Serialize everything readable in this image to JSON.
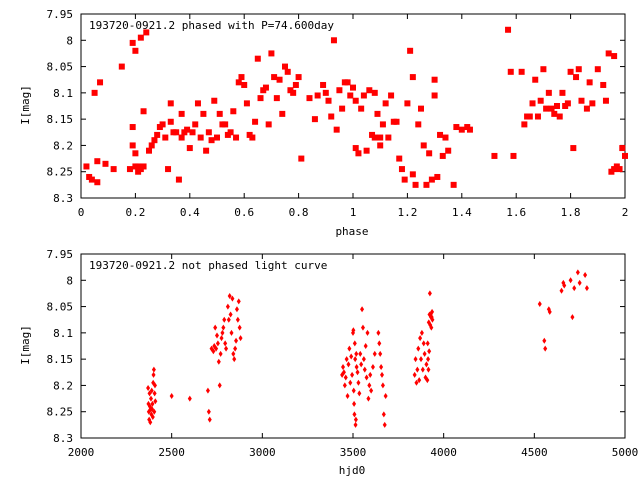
{
  "chart_data": [
    {
      "type": "scatter",
      "title": "193720-0921.2 phased with P=74.600day",
      "xlabel": "phase",
      "ylabel": "I[mag]",
      "xlim": [
        0,
        2
      ],
      "ylim": [
        7.95,
        8.3
      ],
      "y_inverted": true,
      "x_ticks": [
        "0",
        "0.2",
        "0.4",
        "0.6",
        "0.8",
        "1",
        "1.2",
        "1.4",
        "1.6",
        "1.8",
        "2"
      ],
      "y_ticks": [
        "7.95",
        "8",
        "8.05",
        "8.1",
        "8.15",
        "8.2",
        "8.25",
        "8.3"
      ],
      "color": "#ff0000",
      "marker": "filled-square",
      "points": [
        [
          0.02,
          8.24
        ],
        [
          0.03,
          8.26
        ],
        [
          0.04,
          8.265
        ],
        [
          0.05,
          8.1
        ],
        [
          0.06,
          8.27
        ],
        [
          0.06,
          8.23
        ],
        [
          0.07,
          8.08
        ],
        [
          0.09,
          8.235
        ],
        [
          0.12,
          8.245
        ],
        [
          0.15,
          8.05
        ],
        [
          0.18,
          8.245
        ],
        [
          0.19,
          8.2
        ],
        [
          0.19,
          8.165
        ],
        [
          0.19,
          8.005
        ],
        [
          0.2,
          8.24
        ],
        [
          0.2,
          8.215
        ],
        [
          0.2,
          8.02
        ],
        [
          0.21,
          8.24
        ],
        [
          0.21,
          8.25
        ],
        [
          0.22,
          8.245
        ],
        [
          0.22,
          7.995
        ],
        [
          0.23,
          8.24
        ],
        [
          0.23,
          8.135
        ],
        [
          0.24,
          7.985
        ],
        [
          0.25,
          8.21
        ],
        [
          0.26,
          8.2
        ],
        [
          0.27,
          8.19
        ],
        [
          0.28,
          8.18
        ],
        [
          0.29,
          8.165
        ],
        [
          0.3,
          8.16
        ],
        [
          0.31,
          8.185
        ],
        [
          0.32,
          8.245
        ],
        [
          0.33,
          8.12
        ],
        [
          0.33,
          8.155
        ],
        [
          0.34,
          8.175
        ],
        [
          0.35,
          8.175
        ],
        [
          0.36,
          8.265
        ],
        [
          0.37,
          8.185
        ],
        [
          0.37,
          8.14
        ],
        [
          0.38,
          8.175
        ],
        [
          0.39,
          8.17
        ],
        [
          0.4,
          8.205
        ],
        [
          0.41,
          8.175
        ],
        [
          0.42,
          8.16
        ],
        [
          0.43,
          8.12
        ],
        [
          0.44,
          8.185
        ],
        [
          0.45,
          8.14
        ],
        [
          0.46,
          8.21
        ],
        [
          0.47,
          8.175
        ],
        [
          0.48,
          8.19
        ],
        [
          0.49,
          8.115
        ],
        [
          0.5,
          8.185
        ],
        [
          0.51,
          8.14
        ],
        [
          0.52,
          8.16
        ],
        [
          0.53,
          8.16
        ],
        [
          0.54,
          8.18
        ],
        [
          0.55,
          8.175
        ],
        [
          0.56,
          8.135
        ],
        [
          0.57,
          8.185
        ],
        [
          0.58,
          8.08
        ],
        [
          0.59,
          8.07
        ],
        [
          0.6,
          8.085
        ],
        [
          0.61,
          8.12
        ],
        [
          0.62,
          8.18
        ],
        [
          0.63,
          8.185
        ],
        [
          0.64,
          8.155
        ],
        [
          0.65,
          8.035
        ],
        [
          0.66,
          8.11
        ],
        [
          0.67,
          8.095
        ],
        [
          0.68,
          8.09
        ],
        [
          0.69,
          8.16
        ],
        [
          0.7,
          8.025
        ],
        [
          0.71,
          8.07
        ],
        [
          0.72,
          8.11
        ],
        [
          0.73,
          8.075
        ],
        [
          0.74,
          8.14
        ],
        [
          0.75,
          8.05
        ],
        [
          0.76,
          8.06
        ],
        [
          0.77,
          8.095
        ],
        [
          0.78,
          8.1
        ],
        [
          0.79,
          8.085
        ],
        [
          0.8,
          8.07
        ],
        [
          0.81,
          8.225
        ],
        [
          0.84,
          8.11
        ],
        [
          0.86,
          8.15
        ],
        [
          0.87,
          8.105
        ],
        [
          0.89,
          8.085
        ],
        [
          0.9,
          8.1
        ],
        [
          0.91,
          8.115
        ],
        [
          0.92,
          8.145
        ],
        [
          0.93,
          8.0
        ],
        [
          0.94,
          8.17
        ],
        [
          0.95,
          8.095
        ],
        [
          0.96,
          8.13
        ],
        [
          0.97,
          8.08
        ],
        [
          0.98,
          8.08
        ],
        [
          0.99,
          8.105
        ],
        [
          1.0,
          8.09
        ],
        [
          1.01,
          8.115
        ],
        [
          1.01,
          8.205
        ],
        [
          1.02,
          8.215
        ],
        [
          1.03,
          8.13
        ],
        [
          1.04,
          8.105
        ],
        [
          1.05,
          8.21
        ],
        [
          1.06,
          8.095
        ],
        [
          1.07,
          8.18
        ],
        [
          1.08,
          8.185
        ],
        [
          1.08,
          8.1
        ],
        [
          1.09,
          8.14
        ],
        [
          1.1,
          8.2
        ],
        [
          1.1,
          8.185
        ],
        [
          1.11,
          8.16
        ],
        [
          1.12,
          8.12
        ],
        [
          1.13,
          8.185
        ],
        [
          1.14,
          8.105
        ],
        [
          1.15,
          8.155
        ],
        [
          1.16,
          8.155
        ],
        [
          1.17,
          8.225
        ],
        [
          1.18,
          8.245
        ],
        [
          1.19,
          8.265
        ],
        [
          1.2,
          8.12
        ],
        [
          1.21,
          8.02
        ],
        [
          1.22,
          8.255
        ],
        [
          1.22,
          8.07
        ],
        [
          1.23,
          8.275
        ],
        [
          1.24,
          8.16
        ],
        [
          1.25,
          8.13
        ],
        [
          1.26,
          8.2
        ],
        [
          1.27,
          8.275
        ],
        [
          1.28,
          8.215
        ],
        [
          1.29,
          8.265
        ],
        [
          1.3,
          8.105
        ],
        [
          1.3,
          8.075
        ],
        [
          1.31,
          8.26
        ],
        [
          1.32,
          8.18
        ],
        [
          1.33,
          8.22
        ],
        [
          1.34,
          8.185
        ],
        [
          1.35,
          8.21
        ],
        [
          1.37,
          8.275
        ],
        [
          1.38,
          8.165
        ],
        [
          1.4,
          8.17
        ],
        [
          1.42,
          8.165
        ],
        [
          1.43,
          8.17
        ],
        [
          1.52,
          8.22
        ],
        [
          1.57,
          7.98
        ],
        [
          1.58,
          8.06
        ],
        [
          1.59,
          8.22
        ],
        [
          1.62,
          8.06
        ],
        [
          1.63,
          8.16
        ],
        [
          1.64,
          8.145
        ],
        [
          1.65,
          8.145
        ],
        [
          1.66,
          8.12
        ],
        [
          1.67,
          8.075
        ],
        [
          1.68,
          8.145
        ],
        [
          1.69,
          8.115
        ],
        [
          1.7,
          8.055
        ],
        [
          1.71,
          8.13
        ],
        [
          1.72,
          8.1
        ],
        [
          1.73,
          8.13
        ],
        [
          1.74,
          8.14
        ],
        [
          1.75,
          8.125
        ],
        [
          1.76,
          8.145
        ],
        [
          1.77,
          8.1
        ],
        [
          1.78,
          8.125
        ],
        [
          1.79,
          8.12
        ],
        [
          1.8,
          8.06
        ],
        [
          1.81,
          8.205
        ],
        [
          1.82,
          8.07
        ],
        [
          1.83,
          8.055
        ],
        [
          1.84,
          8.115
        ],
        [
          1.86,
          8.13
        ],
        [
          1.87,
          8.08
        ],
        [
          1.88,
          8.12
        ],
        [
          1.9,
          8.055
        ],
        [
          1.92,
          8.085
        ],
        [
          1.93,
          8.115
        ],
        [
          1.94,
          8.025
        ],
        [
          1.95,
          8.25
        ],
        [
          1.96,
          8.245
        ],
        [
          1.96,
          8.03
        ],
        [
          1.97,
          8.24
        ],
        [
          1.98,
          8.245
        ],
        [
          1.99,
          8.205
        ],
        [
          2.0,
          8.22
        ]
      ]
    },
    {
      "type": "scatter",
      "title": "193720-0921.2 not phased light curve",
      "xlabel": "hjd0",
      "ylabel": "I[mag]",
      "xlim": [
        2000,
        5000
      ],
      "ylim": [
        7.95,
        8.3
      ],
      "y_inverted": true,
      "x_ticks": [
        "2000",
        "2500",
        "3000",
        "3500",
        "4000",
        "4500",
        "5000"
      ],
      "y_ticks": [
        "7.95",
        "8",
        "8.05",
        "8.1",
        "8.15",
        "8.2",
        "8.25",
        "8.3"
      ],
      "color": "#ff0000",
      "marker": "small-diamond",
      "points": [
        [
          2370,
          8.205
        ],
        [
          2372,
          8.235
        ],
        [
          2374,
          8.25
        ],
        [
          2376,
          8.265
        ],
        [
          2378,
          8.215
        ],
        [
          2380,
          8.24
        ],
        [
          2382,
          8.27
        ],
        [
          2384,
          8.245
        ],
        [
          2386,
          8.225
        ],
        [
          2388,
          8.255
        ],
        [
          2390,
          8.21
        ],
        [
          2392,
          8.245
        ],
        [
          2394,
          8.235
        ],
        [
          2396,
          8.26
        ],
        [
          2398,
          8.195
        ],
        [
          2400,
          8.18
        ],
        [
          2402,
          8.17
        ],
        [
          2404,
          8.25
        ],
        [
          2406,
          8.215
        ],
        [
          2408,
          8.2
        ],
        [
          2410,
          8.23
        ],
        [
          2500,
          8.22
        ],
        [
          2600,
          8.225
        ],
        [
          2700,
          8.21
        ],
        [
          2705,
          8.25
        ],
        [
          2710,
          8.265
        ],
        [
          2720,
          8.13
        ],
        [
          2730,
          8.135
        ],
        [
          2735,
          8.125
        ],
        [
          2740,
          8.09
        ],
        [
          2745,
          8.13
        ],
        [
          2750,
          8.105
        ],
        [
          2755,
          8.12
        ],
        [
          2760,
          8.155
        ],
        [
          2765,
          8.2
        ],
        [
          2770,
          8.14
        ],
        [
          2775,
          8.11
        ],
        [
          2780,
          8.1
        ],
        [
          2785,
          8.09
        ],
        [
          2790,
          8.075
        ],
        [
          2795,
          8.12
        ],
        [
          2800,
          8.13
        ],
        [
          2810,
          8.05
        ],
        [
          2815,
          8.075
        ],
        [
          2820,
          8.03
        ],
        [
          2825,
          8.065
        ],
        [
          2830,
          8.1
        ],
        [
          2835,
          8.035
        ],
        [
          2840,
          8.14
        ],
        [
          2845,
          8.15
        ],
        [
          2850,
          8.13
        ],
        [
          2855,
          8.115
        ],
        [
          2860,
          8.055
        ],
        [
          2865,
          8.075
        ],
        [
          2870,
          8.04
        ],
        [
          2875,
          8.09
        ],
        [
          2880,
          8.11
        ],
        [
          3440,
          8.18
        ],
        [
          3445,
          8.165
        ],
        [
          3450,
          8.175
        ],
        [
          3455,
          8.2
        ],
        [
          3460,
          8.185
        ],
        [
          3465,
          8.15
        ],
        [
          3470,
          8.22
        ],
        [
          3475,
          8.16
        ],
        [
          3480,
          8.13
        ],
        [
          3485,
          8.195
        ],
        [
          3490,
          8.145
        ],
        [
          3495,
          8.18
        ],
        [
          3500,
          8.1
        ],
        [
          3502,
          8.095
        ],
        [
          3504,
          8.21
        ],
        [
          3506,
          8.235
        ],
        [
          3508,
          8.255
        ],
        [
          3510,
          8.12
        ],
        [
          3512,
          8.15
        ],
        [
          3514,
          8.275
        ],
        [
          3516,
          8.265
        ],
        [
          3518,
          8.14
        ],
        [
          3520,
          8.165
        ],
        [
          3525,
          8.175
        ],
        [
          3530,
          8.195
        ],
        [
          3535,
          8.215
        ],
        [
          3540,
          8.14
        ],
        [
          3545,
          8.16
        ],
        [
          3550,
          8.055
        ],
        [
          3555,
          8.09
        ],
        [
          3560,
          8.15
        ],
        [
          3565,
          8.17
        ],
        [
          3570,
          8.125
        ],
        [
          3575,
          8.185
        ],
        [
          3580,
          8.1
        ],
        [
          3585,
          8.225
        ],
        [
          3590,
          8.2
        ],
        [
          3595,
          8.18
        ],
        [
          3600,
          8.21
        ],
        [
          3610,
          8.165
        ],
        [
          3620,
          8.14
        ],
        [
          3640,
          8.1
        ],
        [
          3645,
          8.12
        ],
        [
          3650,
          8.14
        ],
        [
          3655,
          8.165
        ],
        [
          3660,
          8.18
        ],
        [
          3665,
          8.2
        ],
        [
          3670,
          8.255
        ],
        [
          3675,
          8.275
        ],
        [
          3680,
          8.22
        ],
        [
          3840,
          8.18
        ],
        [
          3845,
          8.15
        ],
        [
          3850,
          8.195
        ],
        [
          3855,
          8.17
        ],
        [
          3860,
          8.13
        ],
        [
          3865,
          8.19
        ],
        [
          3870,
          8.11
        ],
        [
          3875,
          8.15
        ],
        [
          3880,
          8.1
        ],
        [
          3885,
          8.17
        ],
        [
          3890,
          8.12
        ],
        [
          3895,
          8.14
        ],
        [
          3900,
          8.185
        ],
        [
          3905,
          8.16
        ],
        [
          3910,
          8.19
        ],
        [
          3912,
          8.12
        ],
        [
          3914,
          8.15
        ],
        [
          3916,
          8.17
        ],
        [
          3918,
          8.08
        ],
        [
          3920,
          8.135
        ],
        [
          3922,
          8.065
        ],
        [
          3924,
          8.025
        ],
        [
          3926,
          8.085
        ],
        [
          3928,
          8.065
        ],
        [
          3930,
          8.07
        ],
        [
          3932,
          8.09
        ],
        [
          3934,
          8.07
        ],
        [
          3936,
          8.06
        ],
        [
          3938,
          8.075
        ],
        [
          4530,
          8.045
        ],
        [
          4555,
          8.115
        ],
        [
          4560,
          8.13
        ],
        [
          4580,
          8.055
        ],
        [
          4585,
          8.06
        ],
        [
          4650,
          8.02
        ],
        [
          4660,
          8.005
        ],
        [
          4665,
          8.01
        ],
        [
          4700,
          8.0
        ],
        [
          4710,
          8.07
        ],
        [
          4720,
          8.015
        ],
        [
          4740,
          7.985
        ],
        [
          4750,
          8.005
        ],
        [
          4780,
          7.99
        ],
        [
          4790,
          8.015
        ]
      ]
    }
  ]
}
